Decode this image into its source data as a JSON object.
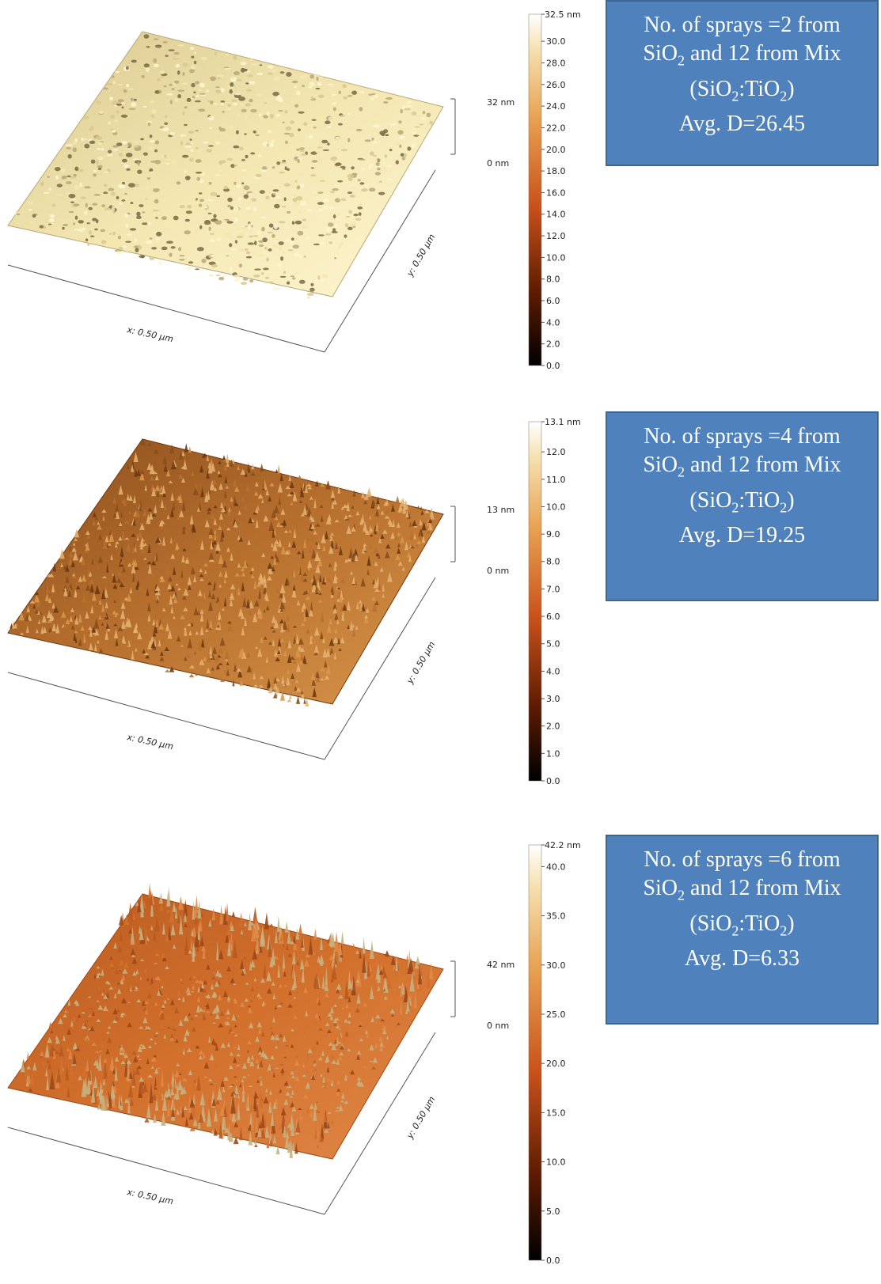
{
  "panels": [
    {
      "x_label": "x: 0.50 µm",
      "y_label": "y: 0.50 µm",
      "z_scale_label": "32 nm",
      "z_zero_label": "0 nm",
      "colorbar_max_label": "32.5 nm",
      "colorbar_ticks": [
        "30.0",
        "28.0",
        "26.0",
        "24.0",
        "22.0",
        "20.0",
        "18.0",
        "16.0",
        "14.0",
        "12.0",
        "10.0",
        "8.0",
        "6.0",
        "4.0",
        "2.0",
        "0.0"
      ],
      "colorbar_tick_values": [
        30,
        28,
        26,
        24,
        22,
        20,
        18,
        16,
        14,
        12,
        10,
        8,
        6,
        4,
        2,
        0
      ],
      "colorbar_max": 32.5,
      "surface_colors": [
        "#f3e6b0",
        "#d8c890",
        "#fff6d2",
        "#b8a878"
      ],
      "peak_color": "#7a6a45",
      "info": {
        "line1": "No. of sprays =2 from",
        "line2_prefix": "SiO",
        "line2_sub": "2",
        "line2_suffix": " and 12 from Mix",
        "line3_a": "(SiO",
        "line3_sub1": "2",
        "line3_b": ":TiO",
        "line3_sub2": "2",
        "line3_c": ")",
        "line4": "Avg. D=26.45"
      }
    },
    {
      "x_label": "x: 0.50 µm",
      "y_label": "y: 0.50 µm",
      "z_scale_label": "13 nm",
      "z_zero_label": "0 nm",
      "colorbar_max_label": "13.1 nm",
      "colorbar_ticks": [
        "12.0",
        "11.0",
        "10.0",
        "9.0",
        "8.0",
        "7.0",
        "6.0",
        "5.0",
        "4.0",
        "3.0",
        "2.0",
        "1.0",
        "0.0"
      ],
      "colorbar_tick_values": [
        12,
        11,
        10,
        9,
        8,
        7,
        6,
        5,
        4,
        3,
        2,
        1,
        0
      ],
      "colorbar_max": 13.1,
      "surface_colors": [
        "#b8702e",
        "#8a4e1c",
        "#d8964a",
        "#6e3a12"
      ],
      "peak_color": "#e2b070",
      "info": {
        "line1": "No. of sprays =4 from",
        "line2_prefix": "SiO",
        "line2_sub": "2",
        "line2_suffix": " and 12 from Mix",
        "line3_a": "(SiO",
        "line3_sub1": "2",
        "line3_b": ":TiO",
        "line3_sub2": "2",
        "line3_c": ")",
        "line4": "Avg. D=19.25"
      }
    },
    {
      "x_label": "x: 0.50 µm",
      "y_label": "y: 0.50 µm",
      "z_scale_label": "42 nm",
      "z_zero_label": "0 nm",
      "colorbar_max_label": "42.2 nm",
      "colorbar_ticks": [
        "40.0",
        "35.0",
        "30.0",
        "25.0",
        "20.0",
        "15.0",
        "10.0",
        "5.0",
        "0.0"
      ],
      "colorbar_tick_values": [
        40,
        35,
        30,
        25,
        20,
        15,
        10,
        5,
        0
      ],
      "colorbar_max": 42.2,
      "surface_colors": [
        "#d2702c",
        "#b85a20",
        "#e08848",
        "#9c4818"
      ],
      "peak_color": "#c8b080",
      "info": {
        "line1": "No. of sprays =6 from",
        "line2_prefix": "SiO",
        "line2_sub": "2",
        "line2_suffix": " and 12 from Mix",
        "line3_a": "(SiO",
        "line3_sub1": "2",
        "line3_b": ":TiO",
        "line3_sub2": "2",
        "line3_c": ")",
        "line4": "Avg. D=6.33"
      }
    }
  ]
}
